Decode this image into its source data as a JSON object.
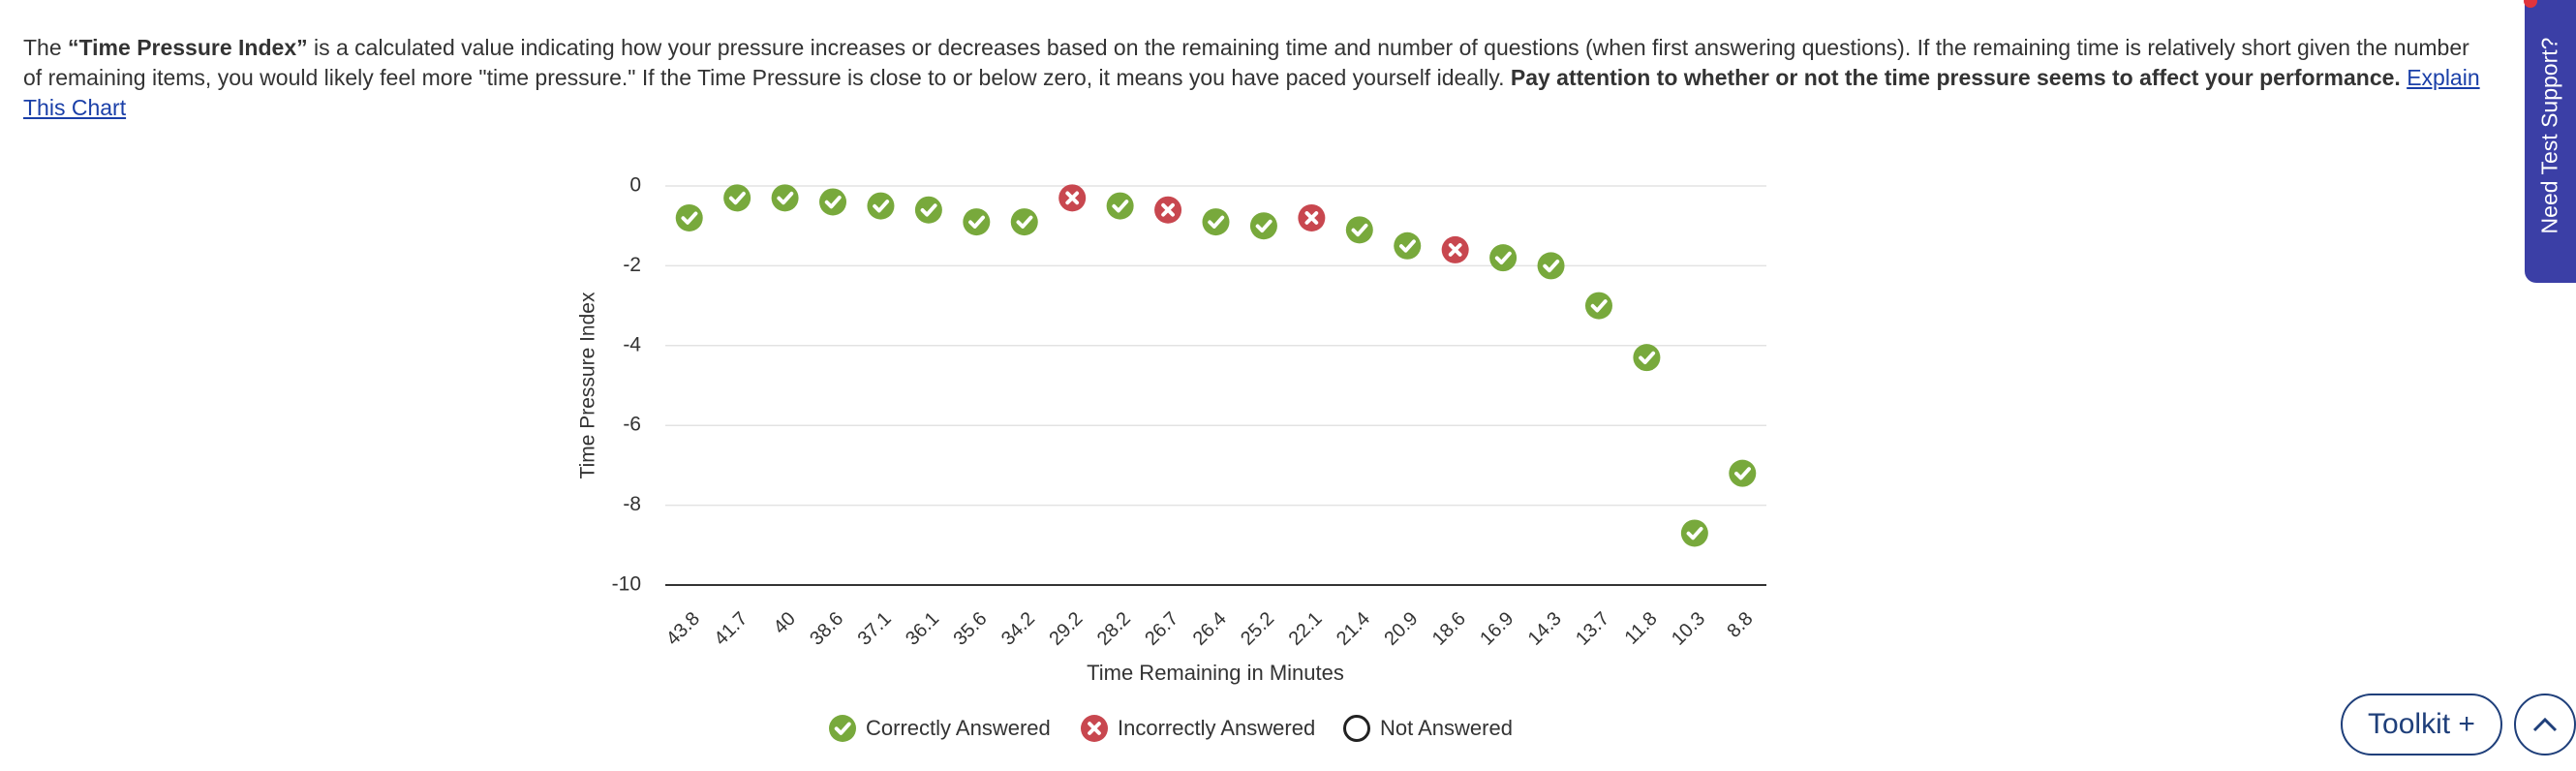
{
  "description": {
    "intro": "The ",
    "term": "“Time Pressure Index”",
    "body": " is a calculated value indicating how your pressure increases or decreases based on the remaining time and number of questions (when first answering questions). If the remaining time is relatively short given the number of remaining items, you would likely feel more \"time pressure.\" If the Time Pressure is close to or below zero, it means you have paced yourself ideally. ",
    "emphasis": "Pay attention to whether or not the time pressure seems to affect your performance.",
    "link": "Explain This Chart"
  },
  "side_tab": "Need Test Support?",
  "toolkit_button": "Toolkit +",
  "chart_data": {
    "type": "scatter",
    "x_label": "Time Remaining in Minutes",
    "y_label": "Time Pressure Index",
    "categories": [
      "43.8",
      "41.7",
      "40",
      "38.6",
      "37.1",
      "36.1",
      "35.6",
      "34.2",
      "29.2",
      "28.2",
      "26.7",
      "26.4",
      "25.2",
      "22.1",
      "21.4",
      "20.9",
      "18.6",
      "16.9",
      "14.3",
      "13.7",
      "11.8",
      "10.3",
      "8.8"
    ],
    "series": [
      {
        "name": "Correctly Answered",
        "color": "#78a93c",
        "marker": "check",
        "values": [
          -0.8,
          -0.3,
          -0.3,
          -0.4,
          -0.5,
          -0.6,
          -0.9,
          -0.9,
          null,
          -0.5,
          null,
          -0.9,
          -1.0,
          null,
          -1.1,
          -1.5,
          null,
          -1.8,
          -2.0,
          -3.0,
          -4.3,
          -8.7,
          -7.2
        ]
      },
      {
        "name": "Incorrectly Answered",
        "color": "#c8474f",
        "marker": "cross",
        "values": [
          null,
          null,
          null,
          null,
          null,
          null,
          null,
          null,
          -0.3,
          null,
          -0.6,
          null,
          null,
          -0.8,
          null,
          null,
          -1.6,
          null,
          null,
          null,
          null,
          null,
          null
        ]
      },
      {
        "name": "Not Answered",
        "color": "#222222",
        "marker": "hollow",
        "values": [
          null,
          null,
          null,
          null,
          null,
          null,
          null,
          null,
          null,
          null,
          null,
          null,
          null,
          null,
          null,
          null,
          null,
          null,
          null,
          null,
          null,
          null,
          null
        ]
      }
    ],
    "ylim": [
      -10,
      0
    ],
    "yticks": [
      0,
      -2,
      -4,
      -6,
      -8,
      -10
    ],
    "grid": true
  }
}
